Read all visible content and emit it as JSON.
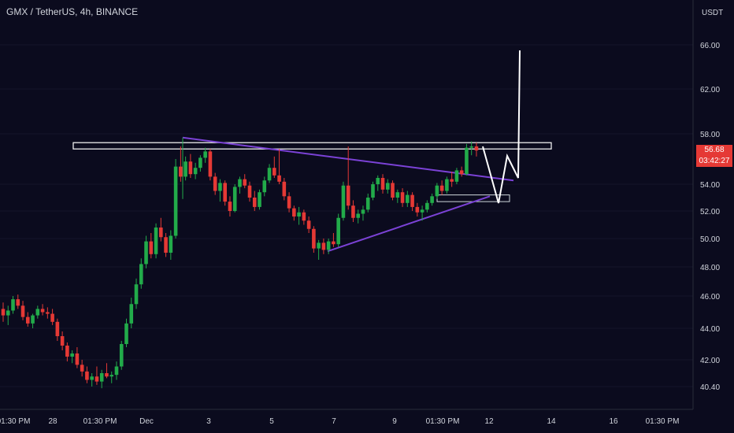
{
  "header": {
    "title": "GMX / TetherUS, 4h, BINANCE"
  },
  "axis": {
    "currency": "USDT"
  },
  "price_label": {
    "price": "56.68",
    "countdown": "03:42:27"
  },
  "colors": {
    "background": "#0b0b1e",
    "up": "#22ab4a",
    "down": "#e53935",
    "trendline": "#7b42d6",
    "level": "#ffffff",
    "text": "#d1d4dc"
  },
  "chart_data": {
    "type": "candlestick",
    "symbol": "GMX / TetherUS",
    "interval": "4h",
    "exchange": "BINANCE",
    "y_ticks": [
      "66.00",
      "62.00",
      "58.00",
      "54.00",
      "52.00",
      "50.00",
      "48.00",
      "46.00",
      "44.00",
      "42.00",
      "40.40"
    ],
    "x_ticks": [
      "01:30 PM",
      "28",
      "01:30 PM",
      "Dec",
      "3",
      "5",
      "7",
      "9",
      "01:30 PM",
      "12",
      "14",
      "16",
      "01:30 PM"
    ],
    "ohlc": [
      [
        45.2,
        45.6,
        44.4,
        44.8
      ],
      [
        44.8,
        45.4,
        44.2,
        45.1
      ],
      [
        45.1,
        46.0,
        44.9,
        45.8
      ],
      [
        45.8,
        46.1,
        45.2,
        45.4
      ],
      [
        45.4,
        45.7,
        44.5,
        44.7
      ],
      [
        44.7,
        45.0,
        44.1,
        44.3
      ],
      [
        44.3,
        44.9,
        44.0,
        44.8
      ],
      [
        44.8,
        45.4,
        44.6,
        45.2
      ],
      [
        45.2,
        45.5,
        44.8,
        45.0
      ],
      [
        45.0,
        45.3,
        44.6,
        44.9
      ],
      [
        44.9,
        45.2,
        44.2,
        44.4
      ],
      [
        44.4,
        44.6,
        43.2,
        43.5
      ],
      [
        43.5,
        43.8,
        42.6,
        42.9
      ],
      [
        42.9,
        43.1,
        41.9,
        42.2
      ],
      [
        42.2,
        42.6,
        41.8,
        42.4
      ],
      [
        42.4,
        42.8,
        41.5,
        41.7
      ],
      [
        41.7,
        42.0,
        41.0,
        41.3
      ],
      [
        41.3,
        41.6,
        40.6,
        40.8
      ],
      [
        40.8,
        41.2,
        40.4,
        41.0
      ],
      [
        41.0,
        41.6,
        40.5,
        40.7
      ],
      [
        40.7,
        41.4,
        40.3,
        41.2
      ],
      [
        41.2,
        41.8,
        40.9,
        41.0
      ],
      [
        41.0,
        41.3,
        40.6,
        41.1
      ],
      [
        41.1,
        41.9,
        40.8,
        41.6
      ],
      [
        41.6,
        43.2,
        41.4,
        43.0
      ],
      [
        43.0,
        44.6,
        42.8,
        44.3
      ],
      [
        44.3,
        45.9,
        44.0,
        45.5
      ],
      [
        45.5,
        47.2,
        45.2,
        46.8
      ],
      [
        46.8,
        48.6,
        46.5,
        48.2
      ],
      [
        48.2,
        50.2,
        47.9,
        49.8
      ],
      [
        49.8,
        50.4,
        48.6,
        48.9
      ],
      [
        48.9,
        51.1,
        48.6,
        50.8
      ],
      [
        50.8,
        51.5,
        49.8,
        50.1
      ],
      [
        50.1,
        50.4,
        48.7,
        49.0
      ],
      [
        49.0,
        50.6,
        48.5,
        50.2
      ],
      [
        50.2,
        56.0,
        50.0,
        55.4
      ],
      [
        55.4,
        57.0,
        54.2,
        54.6
      ],
      [
        54.6,
        56.2,
        54.3,
        55.8
      ],
      [
        55.8,
        56.4,
        54.5,
        54.8
      ],
      [
        54.8,
        55.7,
        54.4,
        55.3
      ],
      [
        55.3,
        56.3,
        55.0,
        56.1
      ],
      [
        56.1,
        56.9,
        55.7,
        56.6
      ],
      [
        56.6,
        56.8,
        54.3,
        54.6
      ],
      [
        54.6,
        54.9,
        53.2,
        53.5
      ],
      [
        53.5,
        54.4,
        52.7,
        54.1
      ],
      [
        54.1,
        54.3,
        52.4,
        52.7
      ],
      [
        52.7,
        53.1,
        51.6,
        52.0
      ],
      [
        52.0,
        54.0,
        51.9,
        53.8
      ],
      [
        53.8,
        54.6,
        53.3,
        54.4
      ],
      [
        54.4,
        54.8,
        53.7,
        53.9
      ],
      [
        53.9,
        54.2,
        52.7,
        53.0
      ],
      [
        53.0,
        53.5,
        52.0,
        52.3
      ],
      [
        52.3,
        53.6,
        52.1,
        53.4
      ],
      [
        53.4,
        54.6,
        53.1,
        54.3
      ],
      [
        54.3,
        55.6,
        54.1,
        55.3
      ],
      [
        55.3,
        56.2,
        54.5,
        54.7
      ],
      [
        54.7,
        56.8,
        54.0,
        54.2
      ],
      [
        54.2,
        54.5,
        52.8,
        53.1
      ],
      [
        53.1,
        53.4,
        51.9,
        52.2
      ],
      [
        52.2,
        52.4,
        51.3,
        51.6
      ],
      [
        51.6,
        52.3,
        51.0,
        51.9
      ],
      [
        51.9,
        52.1,
        51.0,
        51.3
      ],
      [
        51.3,
        51.6,
        50.4,
        50.7
      ],
      [
        50.7,
        50.9,
        49.0,
        49.3
      ],
      [
        49.3,
        49.9,
        48.5,
        49.7
      ],
      [
        49.7,
        50.0,
        48.9,
        49.2
      ],
      [
        49.2,
        50.0,
        48.9,
        49.8
      ],
      [
        49.8,
        50.4,
        49.4,
        49.6
      ],
      [
        49.6,
        51.8,
        49.4,
        51.5
      ],
      [
        51.5,
        54.2,
        51.3,
        53.9
      ],
      [
        53.9,
        57.0,
        52.1,
        52.4
      ],
      [
        52.4,
        52.8,
        51.2,
        51.5
      ],
      [
        51.5,
        52.1,
        51.1,
        51.8
      ],
      [
        51.8,
        52.4,
        51.3,
        52.1
      ],
      [
        52.1,
        53.3,
        51.9,
        53.0
      ],
      [
        53.0,
        54.2,
        52.8,
        54.0
      ],
      [
        54.0,
        54.7,
        53.5,
        54.5
      ],
      [
        54.5,
        54.8,
        53.3,
        53.6
      ],
      [
        53.6,
        54.4,
        53.3,
        54.1
      ],
      [
        54.1,
        54.3,
        52.8,
        53.0
      ],
      [
        53.0,
        53.6,
        52.6,
        53.4
      ],
      [
        53.4,
        53.7,
        52.3,
        52.6
      ],
      [
        52.6,
        53.5,
        52.3,
        53.2
      ],
      [
        53.2,
        53.4,
        52.0,
        52.3
      ],
      [
        52.3,
        52.6,
        51.6,
        51.9
      ],
      [
        51.9,
        52.4,
        51.3,
        52.1
      ],
      [
        52.1,
        52.8,
        51.9,
        52.6
      ],
      [
        52.6,
        53.3,
        52.4,
        53.1
      ],
      [
        53.1,
        54.1,
        52.9,
        53.9
      ],
      [
        53.9,
        54.3,
        53.2,
        53.5
      ],
      [
        53.5,
        54.6,
        53.3,
        54.4
      ],
      [
        54.4,
        55.0,
        53.8,
        54.2
      ],
      [
        54.2,
        55.3,
        54.0,
        55.1
      ],
      [
        55.1,
        55.4,
        54.6,
        54.8
      ],
      [
        54.8,
        57.2,
        54.7,
        56.9
      ],
      [
        56.9,
        57.4,
        56.3,
        57.0
      ],
      [
        57.0,
        57.3,
        56.2,
        56.68
      ]
    ],
    "annotations": {
      "resistance_box": {
        "price_top": 57.3,
        "price_bottom": 56.8
      },
      "support_box": {
        "price_top": 53.2,
        "price_bottom": 52.7
      },
      "triangle_upper": {
        "from": 57.7,
        "to": 54.3
      },
      "triangle_lower": {
        "from": 49.1,
        "to": 53.1
      }
    }
  }
}
